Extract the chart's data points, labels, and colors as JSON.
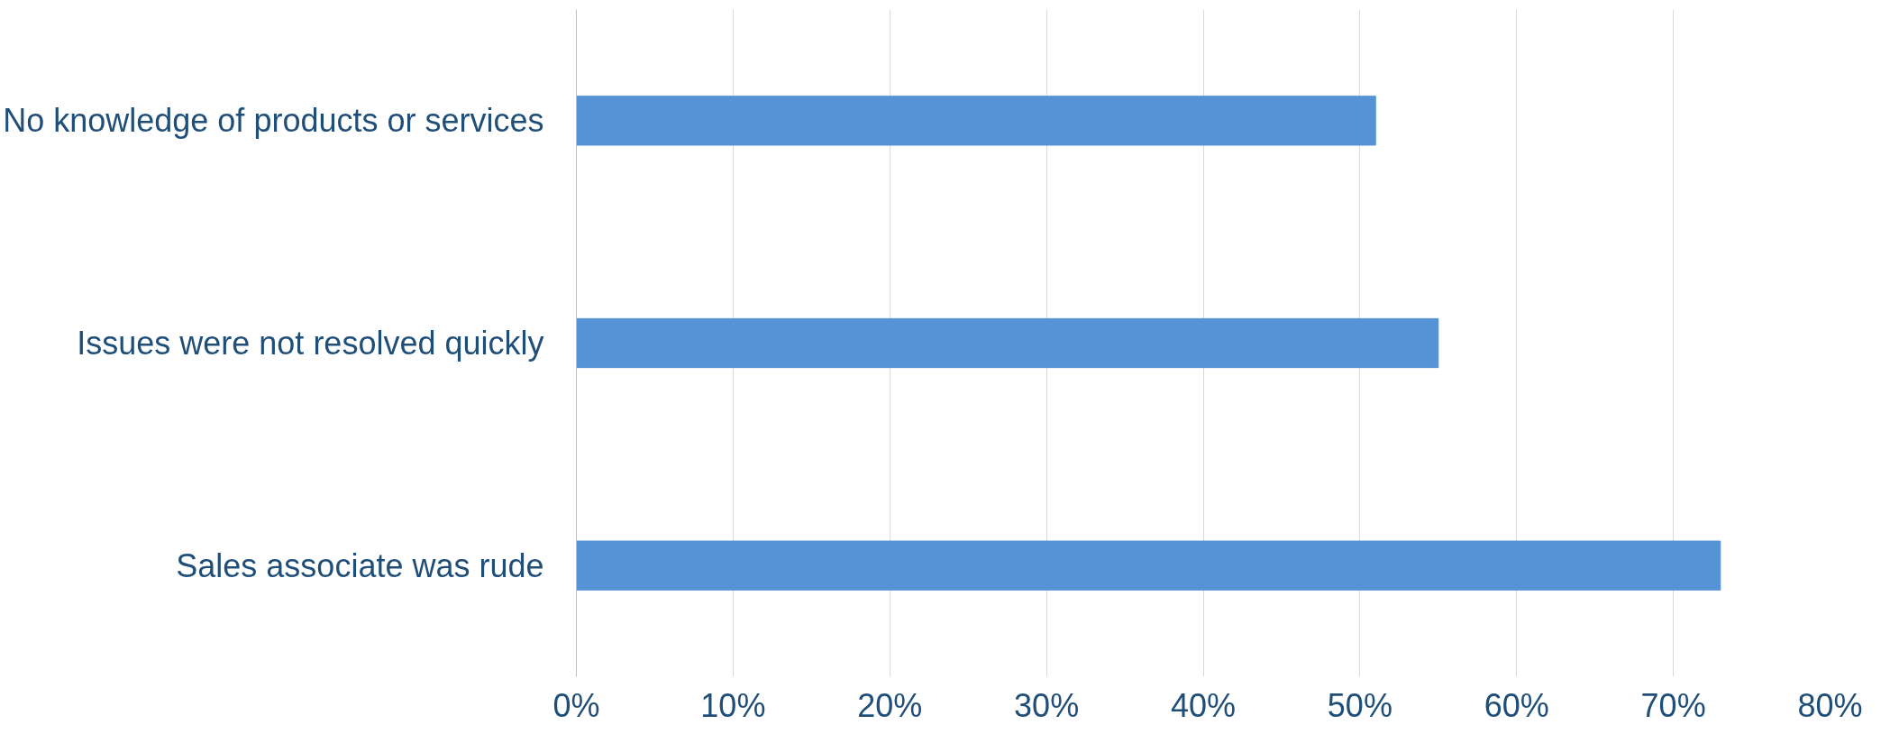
{
  "chart_data": {
    "type": "bar",
    "orientation": "horizontal",
    "categories": [
      "No knowledge of products or services",
      "Issues were not resolved quickly",
      "Sales associate was rude"
    ],
    "values": [
      0.51,
      0.55,
      0.73
    ],
    "color": "#5592d6",
    "xlim": [
      0,
      0.8
    ],
    "xticks": [
      {
        "value": 0,
        "label": "0%"
      },
      {
        "value": 0.1,
        "label": "10%"
      },
      {
        "value": 0.2,
        "label": "20%"
      },
      {
        "value": 0.3,
        "label": "30%"
      },
      {
        "value": 0.4,
        "label": "40%"
      },
      {
        "value": 0.5,
        "label": "50%"
      },
      {
        "value": 0.6,
        "label": "60%"
      },
      {
        "value": 0.7,
        "label": "70%"
      },
      {
        "value": 0.8,
        "label": "80%"
      }
    ],
    "grid": "x"
  }
}
